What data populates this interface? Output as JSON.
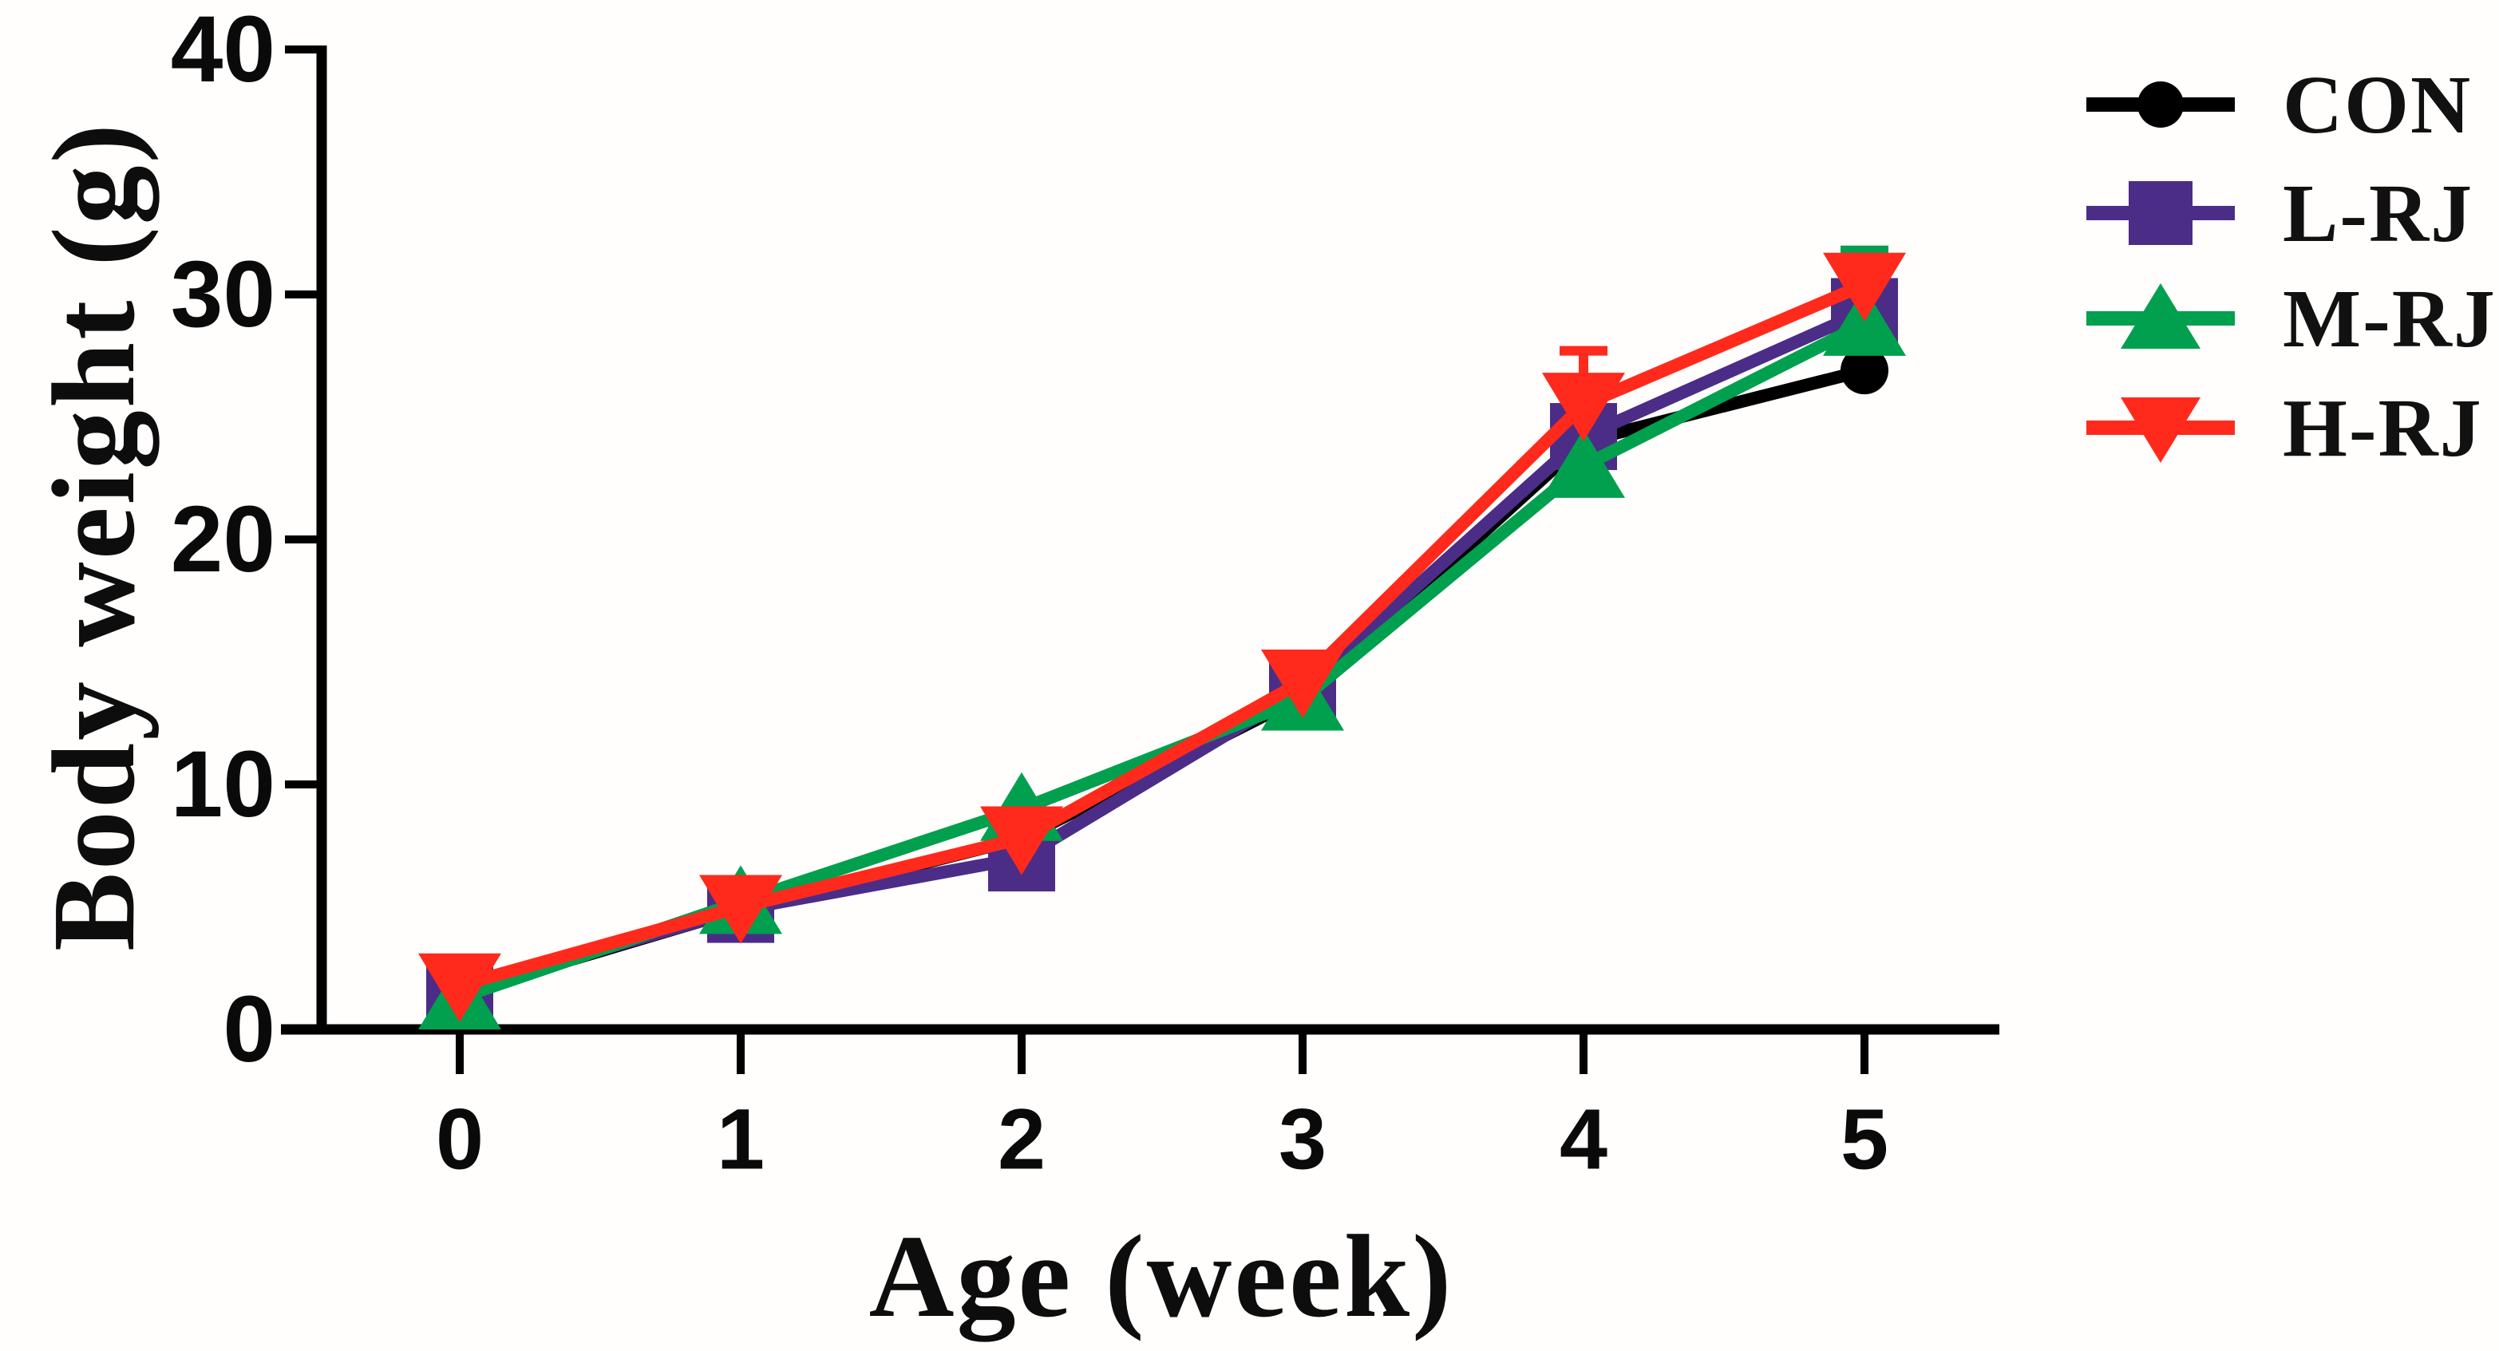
{
  "figure": {
    "background": "#fffefd",
    "axis_color": "#000000"
  },
  "chart_data": {
    "type": "line",
    "title": "",
    "xlabel": "Age (week)",
    "ylabel": "Body weight (g)",
    "x": [
      0,
      1,
      2,
      3,
      4,
      5
    ],
    "xtick_labels": [
      "0",
      "1",
      "2",
      "3",
      "4",
      "5"
    ],
    "ytick_values": [
      0,
      10,
      20,
      30,
      40
    ],
    "ytick_labels": [
      "0",
      "10",
      "20",
      "30",
      "40"
    ],
    "xlim": [
      -0.5,
      5.5
    ],
    "ylim": [
      0,
      40
    ],
    "grid": false,
    "legend_position": "top-right",
    "series": [
      {
        "name": "CON",
        "color": "#000000",
        "marker": "circle",
        "values": [
          1.5,
          4.9,
          7.8,
          13.6,
          24.0,
          26.9
        ],
        "err_up": [
          0,
          0,
          0,
          0,
          0,
          0
        ]
      },
      {
        "name": "L-RJ",
        "color": "#4b2d87",
        "marker": "square",
        "values": [
          1.6,
          4.9,
          7.0,
          13.9,
          24.2,
          29.3
        ],
        "err_up": [
          0,
          0,
          0,
          0,
          0,
          0
        ]
      },
      {
        "name": "M-RJ",
        "color": "#00a04e",
        "marker": "triangle-up",
        "values": [
          1.3,
          5.2,
          9.0,
          13.5,
          23.0,
          28.8
        ],
        "err_up": [
          0,
          0,
          0,
          0,
          0,
          3.0
        ]
      },
      {
        "name": "H-RJ",
        "color": "#ff2a1b",
        "marker": "triangle-down",
        "values": [
          1.8,
          5.0,
          7.8,
          14.2,
          25.5,
          30.4
        ],
        "err_up": [
          0,
          0,
          0,
          0,
          2.2,
          0
        ]
      }
    ]
  }
}
